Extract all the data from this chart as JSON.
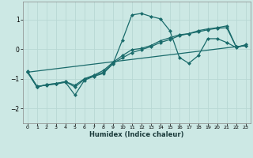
{
  "xlabel": "Humidex (Indice chaleur)",
  "bg_color": "#cce8e4",
  "grid_color": "#b8d8d4",
  "line_color": "#1a6b6b",
  "xlim": [
    -0.5,
    23.5
  ],
  "ylim": [
    -2.5,
    1.6
  ],
  "yticks": [
    -2,
    -1,
    0,
    1
  ],
  "xticks": [
    0,
    1,
    2,
    3,
    4,
    5,
    6,
    7,
    8,
    9,
    10,
    11,
    12,
    13,
    14,
    15,
    16,
    17,
    18,
    19,
    20,
    21,
    22,
    23
  ],
  "curve1_x": [
    0,
    1,
    2,
    3,
    4,
    5,
    6,
    7,
    8,
    9,
    10,
    11,
    12,
    13,
    14,
    15,
    16,
    17,
    18,
    19,
    20,
    21,
    22,
    23
  ],
  "curve1_y": [
    -0.75,
    -1.25,
    -1.22,
    -1.18,
    -1.12,
    -1.55,
    -1.05,
    -0.92,
    -0.82,
    -0.5,
    0.3,
    1.15,
    1.2,
    1.1,
    1.02,
    0.62,
    -0.28,
    -0.48,
    -0.22,
    0.35,
    0.35,
    0.22,
    0.05,
    0.15
  ],
  "curve2_x": [
    0,
    1,
    2,
    3,
    4,
    5,
    6,
    7,
    8,
    9,
    10,
    11,
    12,
    13,
    14,
    15,
    16,
    17,
    18,
    19,
    20,
    21,
    22,
    23
  ],
  "curve2_y": [
    -0.78,
    -1.28,
    -1.2,
    -1.16,
    -1.1,
    -1.22,
    -1.0,
    -0.88,
    -0.72,
    -0.45,
    -0.22,
    -0.02,
    0.02,
    0.12,
    0.28,
    0.38,
    0.48,
    0.52,
    0.62,
    0.68,
    0.72,
    0.78,
    0.07,
    0.12
  ],
  "curve3_x": [
    0,
    1,
    2,
    3,
    4,
    5,
    6,
    7,
    8,
    9,
    10,
    11,
    12,
    13,
    14,
    15,
    16,
    17,
    18,
    19,
    20,
    21,
    22,
    23
  ],
  "curve3_y": [
    -0.78,
    -1.28,
    -1.2,
    -1.16,
    -1.1,
    -1.28,
    -1.02,
    -0.9,
    -0.78,
    -0.48,
    -0.3,
    -0.12,
    -0.02,
    0.08,
    0.22,
    0.32,
    0.45,
    0.52,
    0.58,
    0.65,
    0.7,
    0.72,
    0.07,
    0.12
  ],
  "curve4_x": [
    0,
    23
  ],
  "curve4_y": [
    -0.78,
    0.12
  ],
  "marker_size": 2.5,
  "linewidth": 0.9
}
